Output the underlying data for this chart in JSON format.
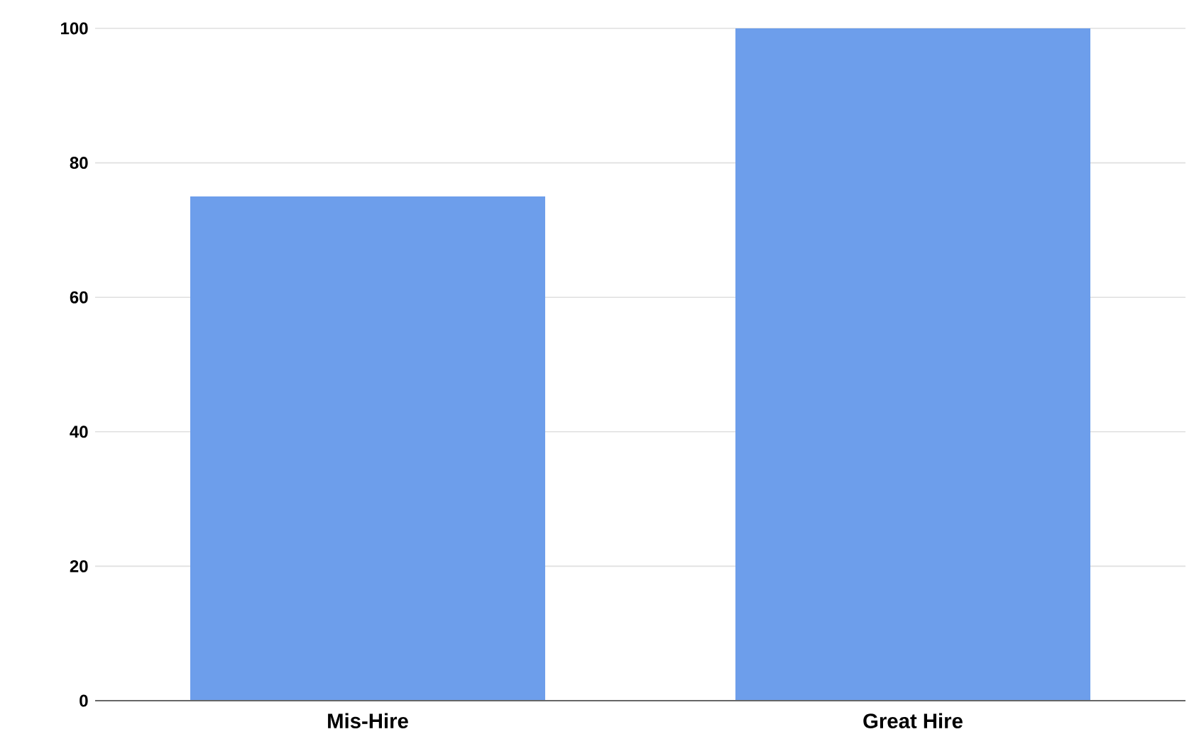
{
  "chart_data": {
    "type": "bar",
    "categories": [
      "Mis-Hire",
      "Great Hire"
    ],
    "values": [
      75,
      100
    ],
    "color": "#6d9eeb",
    "ylim": [
      0,
      100
    ],
    "yticks": [
      0,
      20,
      40,
      60,
      80,
      100
    ],
    "grid": "y"
  }
}
